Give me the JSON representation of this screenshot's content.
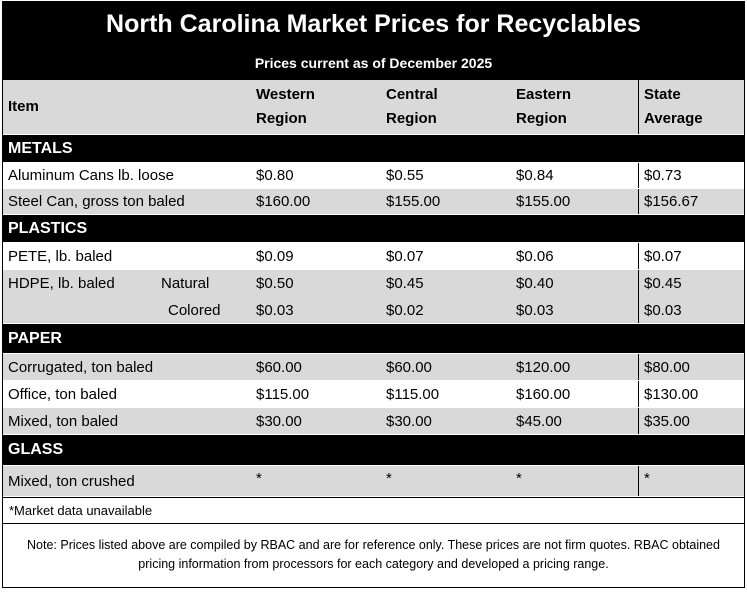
{
  "title": "North Carolina Market Prices for Recyclables",
  "subtitle": "Prices current as of December 2025",
  "columns": {
    "item": "Item",
    "western_1": "Western",
    "western_2": "Region",
    "central_1": "Central",
    "central_2": "Region",
    "eastern_1": "Eastern",
    "eastern_2": "Region",
    "state_1": "State",
    "state_2": "Average"
  },
  "sections": {
    "metals": "METALS",
    "plastics": "PLASTICS",
    "paper": "PAPER",
    "glass": "GLASS"
  },
  "rows": {
    "aluminum": {
      "item": "Aluminum Cans lb. loose",
      "western": "$0.80",
      "central": "$0.55",
      "eastern": "$0.84",
      "state": "$0.73"
    },
    "steel": {
      "item": "Steel Can, gross ton baled",
      "western": "$160.00",
      "central": "$155.00",
      "eastern": "$155.00",
      "state": "$156.67"
    },
    "pete": {
      "item": "PETE, lb. baled",
      "western": "$0.09",
      "central": "$0.07",
      "eastern": "$0.06",
      "state": "$0.07"
    },
    "hdpe_natural": {
      "item": "HDPE, lb. baled",
      "sub": "Natural",
      "western": "$0.50",
      "central": "$0.45",
      "eastern": "$0.40",
      "state": "$0.45"
    },
    "hdpe_colored": {
      "sub": "Colored",
      "western": "$0.03",
      "central": "$0.02",
      "eastern": "$0.03",
      "state": "$0.03"
    },
    "corrugated": {
      "item": "Corrugated, ton baled",
      "western": "$60.00",
      "central": "$60.00",
      "eastern": "$120.00",
      "state": "$80.00"
    },
    "office": {
      "item": "Office, ton baled",
      "western": "$115.00",
      "central": "$115.00",
      "eastern": "$160.00",
      "state": "$130.00"
    },
    "mixed_paper": {
      "item": "Mixed, ton baled",
      "western": "$30.00",
      "central": "$30.00",
      "eastern": "$45.00",
      "state": "$35.00"
    },
    "glass_mixed": {
      "item": "Mixed, ton crushed",
      "western": "*",
      "central": "*",
      "eastern": "*",
      "state": "*"
    }
  },
  "footnote": "*Market data unavailable",
  "note": "Note: Prices listed above are compiled by RBAC and are for reference only. These prices are not firm quotes. RBAC obtained pricing information from processors for each category and developed a pricing range.",
  "colors": {
    "band": "#000000",
    "row_grey": "#d9d9d9",
    "row_white": "#ffffff"
  }
}
